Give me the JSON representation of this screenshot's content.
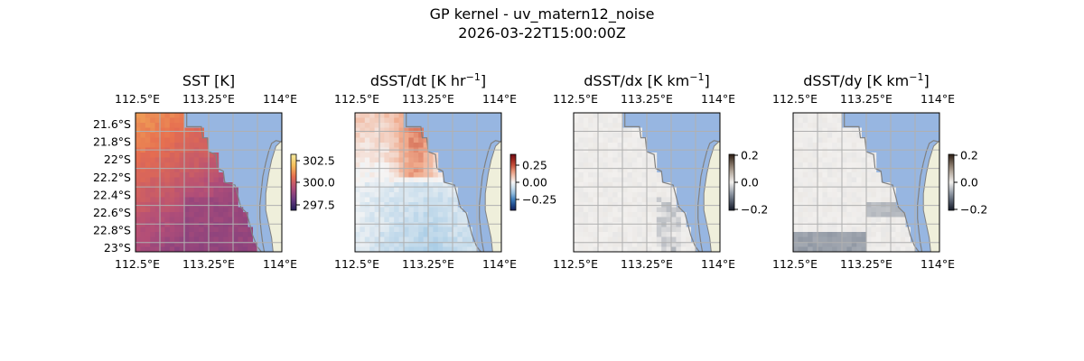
{
  "suptitle": "GP kernel - uv_matern12_noise",
  "timestamp": "2026-03-22T15:00:00Z",
  "map_extent": {
    "lon": [
      112.5,
      114.0
    ],
    "lat": [
      -23.0,
      -21.5
    ]
  },
  "colors": {
    "ocean": "#97b6e1",
    "land": "#efefdb",
    "coast": "#808080",
    "grid": "#b0b0b0"
  },
  "panels": [
    {
      "id": "sst",
      "title": "SST [K]",
      "colormap": "thermal",
      "lon_ticks": [
        "112.5°E",
        "113.25°E",
        "114°E"
      ],
      "lat_ticks": [
        "21.6°S",
        "21.8°S",
        "22°S",
        "22.2°S",
        "22.4°S",
        "22.6°S",
        "22.8°S",
        "23°S"
      ],
      "colorbar": {
        "range": [
          297.0,
          303.5
        ],
        "ticks": [
          "302.5",
          "300.0",
          "297.5"
        ]
      }
    },
    {
      "id": "dsst_dt",
      "title": "dSST/dt [K hr",
      "unit_exp": "−1",
      "title_end": "]",
      "colormap": "diverging",
      "lon_ticks": [
        "112.5°E",
        "113.25°E",
        "114°E"
      ],
      "lat_ticks": [],
      "colorbar": {
        "range": [
          -0.4,
          0.4
        ],
        "ticks": [
          "0.25",
          "0.00",
          "−0.25"
        ]
      }
    },
    {
      "id": "dsst_dx",
      "title": "dSST/dx [K km",
      "unit_exp": "−1",
      "title_end": "]",
      "colormap": "gray_diverging",
      "lon_ticks": [
        "112.5°E",
        "113.25°E",
        "114°E"
      ],
      "lat_ticks": [],
      "colorbar": {
        "range": [
          -0.2,
          0.2
        ],
        "ticks": [
          "0.2",
          "0.0",
          "−0.2"
        ]
      }
    },
    {
      "id": "dsst_dy",
      "title": "dSST/dy [K km",
      "unit_exp": "−1",
      "title_end": "]",
      "colormap": "gray_diverging",
      "lon_ticks": [
        "112.5°E",
        "113.25°E",
        "114°E"
      ],
      "lat_ticks": [],
      "colorbar": {
        "range": [
          -0.2,
          0.2
        ],
        "ticks": [
          "0.2",
          "0.0",
          "−0.2"
        ]
      }
    }
  ]
}
